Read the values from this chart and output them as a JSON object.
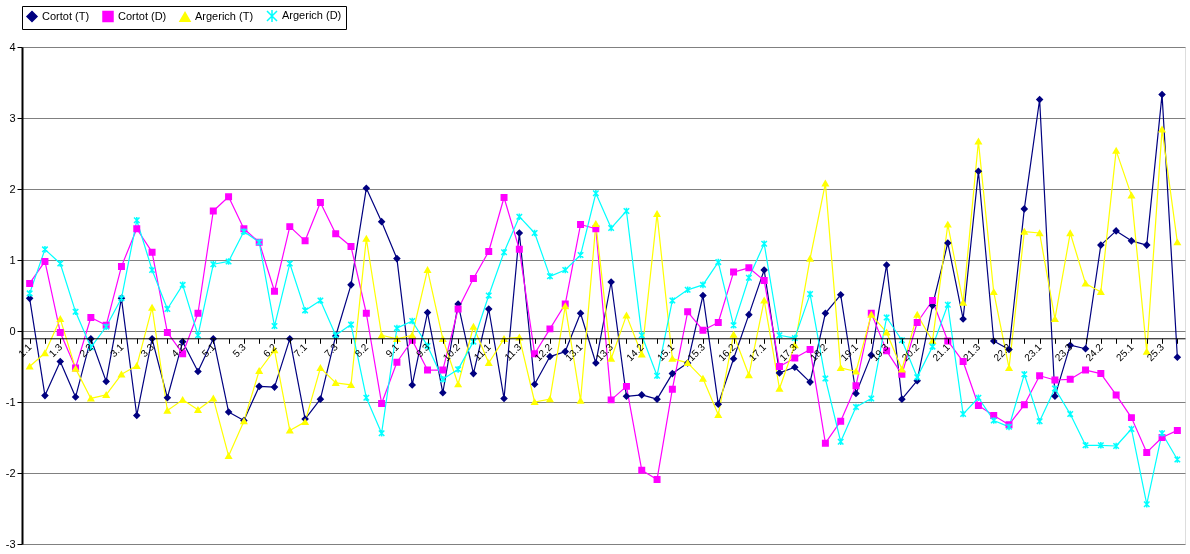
{
  "chart_data": {
    "type": "line",
    "categories": [
      "1.1",
      null,
      "1.3",
      null,
      "2.2",
      null,
      "3.1",
      null,
      "3.3",
      null,
      "4.2",
      null,
      "5.1",
      null,
      "5.3",
      null,
      "6.2",
      null,
      "7.1",
      null,
      "7.3",
      null,
      "8.2",
      null,
      "9.1",
      null,
      "9.3",
      null,
      "10.2",
      null,
      "11.1",
      null,
      "11.3",
      null,
      "12.2",
      null,
      "13.1",
      null,
      "13.3",
      null,
      "14.2",
      null,
      "15.1",
      null,
      "15.3",
      null,
      "16.2",
      null,
      "17.1",
      null,
      "17.3",
      null,
      "18.2",
      null,
      "19.1",
      null,
      "19.3",
      null,
      "20.2",
      null,
      "21.1",
      null,
      "21.3",
      null,
      "22.2",
      null,
      "23.1",
      null,
      "23.3",
      null,
      "24.2",
      null,
      "25.1",
      null,
      "25.3",
      null
    ],
    "series": [
      {
        "name": "Cortot (T)",
        "color": "#000080",
        "marker": "diamond",
        "values": [
          0.46,
          -0.91,
          -0.43,
          -0.93,
          -0.11,
          -0.71,
          0.46,
          -1.19,
          -0.11,
          -0.94,
          -0.15,
          -0.57,
          -0.11,
          -1.14,
          -1.26,
          -0.78,
          -0.79,
          -0.11,
          -1.24,
          -0.96,
          -0.07,
          0.65,
          2.01,
          1.54,
          1.02,
          -0.76,
          0.26,
          -0.87,
          0.38,
          -0.6,
          0.31,
          -0.95,
          1.38,
          -0.75,
          -0.36,
          -0.29,
          0.25,
          -0.45,
          0.69,
          -0.92,
          -0.9,
          -0.96,
          -0.6,
          -0.45,
          0.5,
          -1.03,
          -0.39,
          0.23,
          0.86,
          -0.59,
          -0.51,
          -0.72,
          0.25,
          0.51,
          -0.88,
          -0.34,
          0.93,
          -0.96,
          -0.7,
          0.36,
          1.24,
          0.17,
          2.25,
          -0.14,
          -0.26,
          1.72,
          3.26,
          -0.92,
          -0.2,
          -0.25,
          1.21,
          1.41,
          1.27,
          1.21,
          3.33,
          -0.37
        ]
      },
      {
        "name": "Cortot (D)",
        "color": "#ff00ff",
        "marker": "square",
        "values": [
          0.67,
          0.98,
          -0.02,
          -0.52,
          0.19,
          0.08,
          0.91,
          1.44,
          1.11,
          -0.02,
          -0.32,
          0.25,
          1.69,
          1.89,
          1.44,
          1.25,
          0.56,
          1.47,
          1.27,
          1.81,
          1.37,
          1.19,
          0.25,
          -1.02,
          -0.44,
          -0.13,
          -0.55,
          -0.55,
          0.31,
          0.74,
          1.12,
          1.88,
          1.15,
          -0.32,
          0.03,
          0.38,
          1.5,
          1.44,
          -0.97,
          -0.78,
          -1.96,
          -2.09,
          -0.82,
          0.27,
          0.01,
          0.12,
          0.83,
          0.89,
          0.71,
          -0.5,
          -0.38,
          -0.26,
          -1.58,
          -1.27,
          -0.77,
          0.25,
          -0.28,
          -0.61,
          0.12,
          0.43,
          -0.14,
          -0.43,
          -1.05,
          -1.19,
          -1.32,
          -1.04,
          -0.63,
          -0.69,
          -0.68,
          -0.55,
          -0.6,
          -0.9,
          -1.22,
          -1.71,
          -1.5,
          -1.4
        ]
      },
      {
        "name": "Argerich (T)",
        "color": "#ffff00",
        "marker": "triangle",
        "values": [
          -0.5,
          -0.31,
          0.17,
          -0.53,
          -0.95,
          -0.9,
          -0.61,
          -0.49,
          0.33,
          -1.12,
          -0.97,
          -1.11,
          -0.95,
          -1.76,
          -1.27,
          -0.56,
          -0.27,
          -1.4,
          -1.28,
          -0.52,
          -0.73,
          -0.76,
          1.3,
          -0.06,
          -0.11,
          -0.06,
          0.86,
          -0.11,
          -0.75,
          0.06,
          -0.45,
          -0.11,
          -0.09,
          -1.0,
          -0.96,
          0.35,
          -0.98,
          1.51,
          -0.39,
          0.22,
          -0.33,
          1.65,
          -0.39,
          -0.45,
          -0.67,
          -1.18,
          -0.05,
          -0.62,
          0.43,
          -0.81,
          -0.2,
          1.02,
          2.08,
          -0.52,
          -0.57,
          0.23,
          -0.02,
          -0.54,
          0.23,
          -0.14,
          1.5,
          0.4,
          2.67,
          0.55,
          -0.52,
          1.4,
          1.38,
          0.17,
          1.38,
          0.67,
          0.55,
          2.54,
          1.91,
          -0.29,
          2.84,
          1.25
        ]
      },
      {
        "name": "Argerich (D)",
        "color": "#00ffff",
        "marker": "cross",
        "values": [
          0.53,
          1.15,
          0.95,
          0.27,
          -0.23,
          0.06,
          0.46,
          1.56,
          0.86,
          0.31,
          0.65,
          -0.06,
          0.94,
          0.98,
          1.4,
          1.25,
          0.07,
          0.95,
          0.29,
          0.43,
          -0.06,
          0.09,
          -0.94,
          -1.44,
          0.04,
          0.14,
          -0.21,
          -0.68,
          -0.54,
          -0.15,
          0.5,
          1.11,
          1.61,
          1.38,
          0.77,
          0.86,
          1.07,
          1.94,
          1.45,
          1.69,
          -0.06,
          -0.63,
          0.43,
          0.58,
          0.65,
          0.97,
          0.08,
          0.75,
          1.23,
          -0.06,
          -0.1,
          0.52,
          -0.67,
          -1.56,
          -1.07,
          -0.95,
          0.19,
          -0.13,
          -0.65,
          -0.22,
          0.37,
          -1.17,
          -0.94,
          -1.26,
          -1.35,
          -0.61,
          -1.27,
          -0.81,
          -1.17,
          -1.61,
          -1.61,
          -1.62,
          -1.38,
          -2.44,
          -1.44,
          -1.81
        ]
      }
    ],
    "ylim": [
      -3,
      4
    ],
    "yticks": [
      -3,
      -2,
      -1,
      0,
      1,
      2,
      3,
      4
    ],
    "grid": "y",
    "legend": "top",
    "line_style": "solid"
  }
}
